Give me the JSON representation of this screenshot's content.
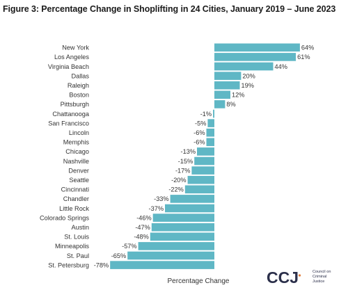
{
  "title": "Figure 3: Percentage Change in Shoplifting in 24 Cities, January 2019 – June 2023",
  "logo": {
    "text": "CCJ",
    "org_lines": [
      "Council on",
      "Criminal",
      "Justice"
    ],
    "colors": {
      "text": "#2b2f4a",
      "accent": "#e07b39"
    }
  },
  "chart_data": {
    "type": "bar",
    "orientation": "horizontal",
    "categories": [
      "New York",
      "Los Angeles",
      "Virginia Beach",
      "Dallas",
      "Raleigh",
      "Boston",
      "Pittsburgh",
      "Chattanooga",
      "San Francisco",
      "Lincoln",
      "Memphis",
      "Chicago",
      "Nashville",
      "Denver",
      "Seattle",
      "Cincinnati",
      "Chandler",
      "Little Rock",
      "Colorado Springs",
      "Austin",
      "St. Louis",
      "Minneapolis",
      "St. Paul",
      "St. Petersburg"
    ],
    "values": [
      64,
      61,
      44,
      20,
      19,
      12,
      8,
      -1,
      -5,
      -6,
      -6,
      -13,
      -15,
      -17,
      -20,
      -22,
      -33,
      -37,
      -46,
      -47,
      -48,
      -57,
      -65,
      -78
    ],
    "data_labels": [
      "64%",
      "61%",
      "44%",
      "20%",
      "19%",
      "12%",
      "8%",
      "-1%",
      "-5%",
      "-6%",
      "-6%",
      "-13%",
      "-15%",
      "-17%",
      "-20%",
      "-22%",
      "-33%",
      "-37%",
      "-46%",
      "-47%",
      "-48%",
      "-57%",
      "-65%",
      "-78%"
    ],
    "xlabel": "Percentage Change",
    "ylabel": "",
    "xlim": [
      -80,
      66
    ],
    "bar_color": "#5fb7c5",
    "grid": false,
    "legend": "none"
  }
}
